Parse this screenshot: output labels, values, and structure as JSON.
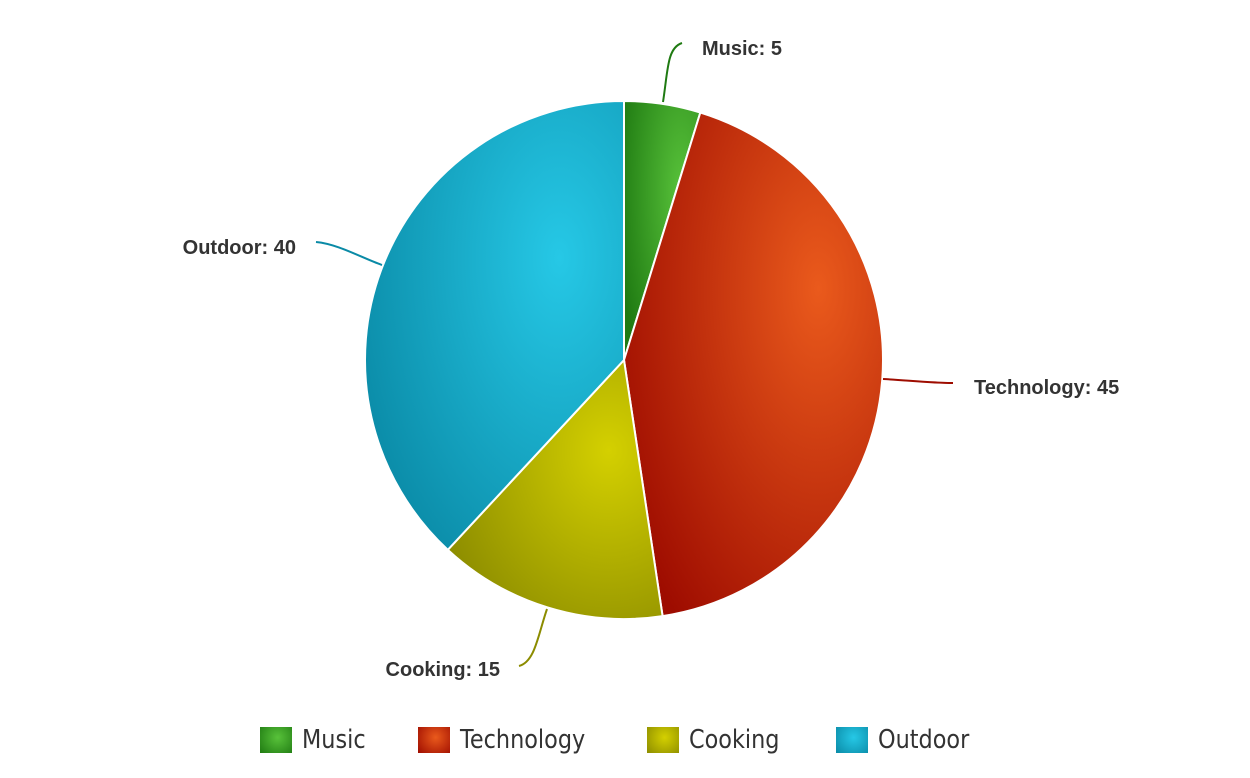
{
  "chart_data": {
    "type": "pie",
    "title": "",
    "slices": [
      {
        "name": "Music",
        "value": 5,
        "label": "Music: 5",
        "color": "#3aa623",
        "dark": "#1f7a12",
        "light": "#58c23a"
      },
      {
        "name": "Technology",
        "value": 45,
        "label": "Technology: 45",
        "color": "#cc2a0e",
        "dark": "#9e0c00",
        "light": "#ea5a1c"
      },
      {
        "name": "Cooking",
        "value": 15,
        "label": "Cooking: 15",
        "color": "#b0b000",
        "dark": "#8c8c00",
        "light": "#d4d000"
      },
      {
        "name": "Outdoor",
        "value": 40,
        "label": "Outdoor: 40",
        "color": "#13a6c4",
        "dark": "#0a8aa6",
        "light": "#26c8e6"
      }
    ],
    "legend_position": "bottom"
  }
}
